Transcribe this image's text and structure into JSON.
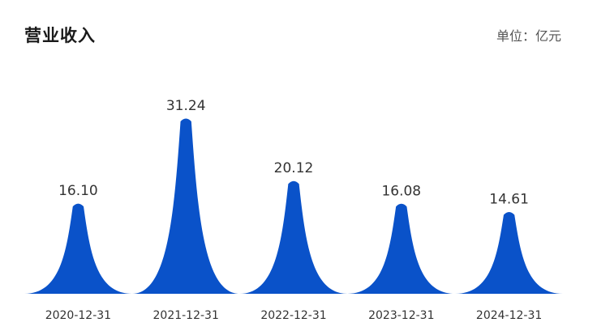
{
  "header": {
    "title": "营业收入",
    "unit": "单位：亿元"
  },
  "colors": {
    "peak": "#0a52c9"
  },
  "chart_data": {
    "type": "bar",
    "title": "营业收入",
    "xlabel": "",
    "ylabel": "",
    "unit": "单位：亿元",
    "categories": [
      "2020-12-31",
      "2021-12-31",
      "2022-12-31",
      "2023-12-31",
      "2024-12-31"
    ],
    "values": [
      16.1,
      31.24,
      20.12,
      16.08,
      14.61
    ],
    "value_labels": [
      "16.10",
      "31.24",
      "20.12",
      "16.08",
      "14.61"
    ],
    "ylim": [
      0,
      31.24
    ],
    "grid": false,
    "legend": "none",
    "style": "pictorial-peak"
  }
}
